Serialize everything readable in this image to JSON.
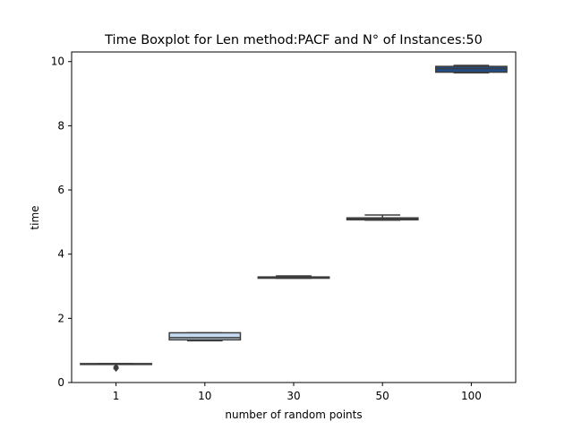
{
  "chart_data": {
    "type": "boxplot",
    "title": "Time Boxplot for Len method:PACF and N° of Instances:50",
    "xlabel": "number of random points",
    "ylabel": "time",
    "categories": [
      "1",
      "10",
      "30",
      "50",
      "100"
    ],
    "ylim": [
      0,
      10.3
    ],
    "yticks": [
      0,
      2,
      4,
      6,
      8,
      10
    ],
    "grid": false,
    "boxes": [
      {
        "category": "1",
        "whisker_low": 0.57,
        "q1": 0.57,
        "median": 0.58,
        "q3": 0.59,
        "whisker_high": 0.59,
        "outliers": [
          0.48,
          0.44
        ],
        "color": "#f7fbff"
      },
      {
        "category": "10",
        "whisker_low": 1.3,
        "q1": 1.33,
        "median": 1.4,
        "q3": 1.55,
        "whisker_high": 1.55,
        "outliers": [],
        "color": "#c6dbef"
      },
      {
        "category": "30",
        "whisker_low": 3.25,
        "q1": 3.25,
        "median": 3.27,
        "q3": 3.29,
        "whisker_high": 3.32,
        "outliers": [],
        "color": "#6baed6"
      },
      {
        "category": "50",
        "whisker_low": 5.06,
        "q1": 5.07,
        "median": 5.1,
        "q3": 5.13,
        "whisker_high": 5.22,
        "outliers": [],
        "color": "#2171b5"
      },
      {
        "category": "100",
        "whisker_low": 9.65,
        "q1": 9.67,
        "median": 9.78,
        "q3": 9.85,
        "whisker_high": 9.88,
        "outliers": [],
        "color": "#1f4e8c"
      }
    ]
  }
}
